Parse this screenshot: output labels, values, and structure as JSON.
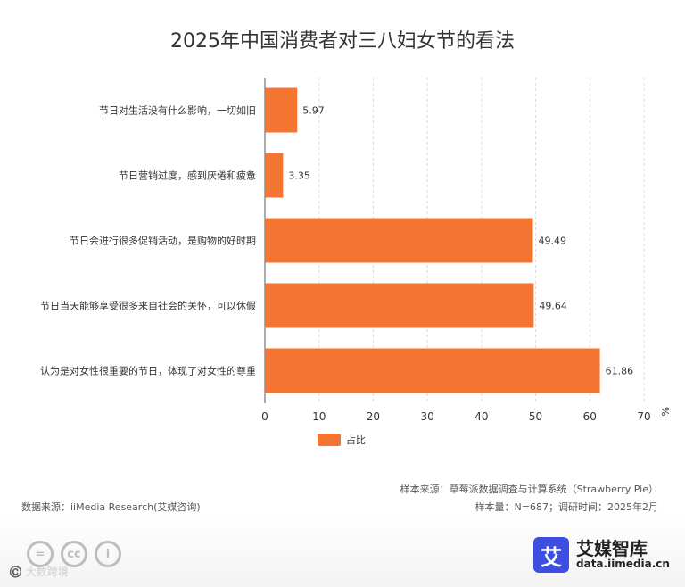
{
  "chart_data": {
    "type": "bar",
    "orientation": "horizontal",
    "title": "2025年中国消费者对三八妇女节的看法",
    "categories": [
      "节日对生活没有什么影响，一切如旧",
      "节日营销过度，感到厌倦和疲惫",
      "节日会进行很多促销活动，是购物的好时期",
      "节日当天能够享受很多来自社会的关怀，可以休假",
      "认为是对女性很重要的节日，体现了对女性的尊重"
    ],
    "series": [
      {
        "name": "占比",
        "values": [
          5.97,
          3.35,
          49.49,
          49.64,
          61.86
        ],
        "color": "#f47432"
      }
    ],
    "xlim": [
      0,
      70
    ],
    "xticks": [
      0,
      10,
      20,
      30,
      40,
      50,
      60,
      70
    ],
    "unit": "%",
    "grid": true,
    "legend": "bottom"
  },
  "footer": {
    "source_left": "数据来源：iiMedia Research(艾媒咨询)",
    "sample_source": "样本来源：草莓派数据调查与计算系统（Strawberry Pie）",
    "sample_info": "样本量：N=687；调研时间：2025年2月"
  },
  "branding": {
    "logo_char": "艾",
    "logo_name": "艾媒智库",
    "logo_url": "data.iimedia.cn",
    "watermark": "©️ 大数跨境",
    "license_icons": [
      "=",
      "cc",
      "i"
    ]
  }
}
